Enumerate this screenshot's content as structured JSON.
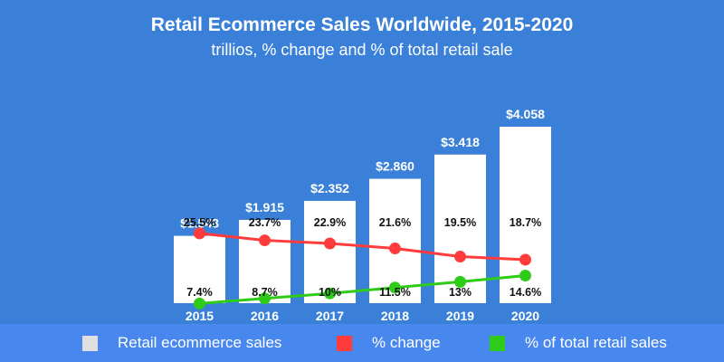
{
  "chart_data": {
    "type": "bar",
    "title": "Retail Ecommerce Sales Worldwide, 2015-2020",
    "subtitle": "trillios, % change and % of total retail sale",
    "categories": [
      "2015",
      "2016",
      "2017",
      "2018",
      "2019",
      "2020"
    ],
    "series": [
      {
        "name": "Retail ecommerce sales",
        "type": "bar",
        "color": "#ffffff",
        "values": [
          1.548,
          1.915,
          2.352,
          2.86,
          3.418,
          4.058
        ],
        "labels": [
          "$1.548",
          "$1.915",
          "$2.352",
          "$2.860",
          "$3.418",
          "$4.058"
        ]
      },
      {
        "name": "% change",
        "type": "line",
        "color": "#ff3b3b",
        "values": [
          25.5,
          23.7,
          22.9,
          21.6,
          19.5,
          18.7
        ],
        "labels": [
          "25.5%",
          "23.7%",
          "22.9%",
          "21.6%",
          "19.5%",
          "18.7%"
        ]
      },
      {
        "name": "% of total retail sales",
        "type": "line",
        "color": "#2ecc18",
        "values": [
          7.4,
          8.7,
          10,
          11.5,
          13,
          14.6
        ],
        "labels": [
          "7.4%",
          "8.7%",
          "10%",
          "11.5%",
          "13%",
          "14.6%"
        ]
      }
    ],
    "legend": "bottom",
    "legend_swatch_color_bar": "#e0e0e0",
    "grid": false
  }
}
